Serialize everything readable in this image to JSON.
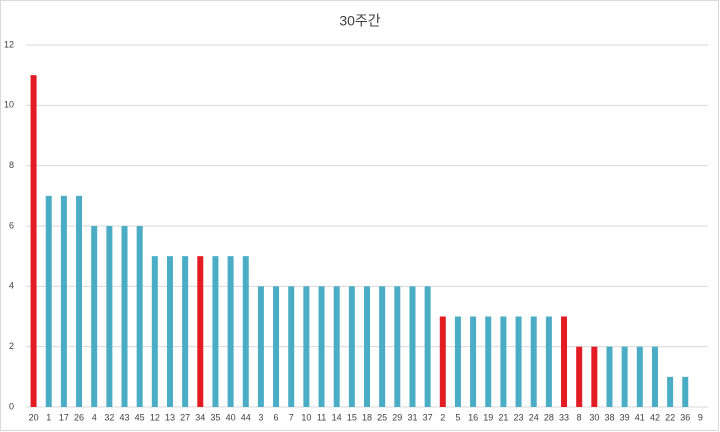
{
  "chart_data": {
    "type": "bar",
    "title": "30주간",
    "categories": [
      "20",
      "1",
      "17",
      "26",
      "4",
      "32",
      "43",
      "45",
      "12",
      "13",
      "27",
      "34",
      "35",
      "40",
      "44",
      "3",
      "6",
      "7",
      "10",
      "11",
      "14",
      "15",
      "18",
      "25",
      "29",
      "31",
      "37",
      "2",
      "5",
      "16",
      "19",
      "21",
      "23",
      "24",
      "28",
      "33",
      "8",
      "30",
      "38",
      "39",
      "41",
      "42",
      "22",
      "36",
      "9"
    ],
    "values": [
      11,
      7,
      7,
      7,
      6,
      6,
      6,
      6,
      5,
      5,
      5,
      5,
      5,
      5,
      5,
      4,
      4,
      4,
      4,
      4,
      4,
      4,
      4,
      4,
      4,
      4,
      4,
      3,
      3,
      3,
      3,
      3,
      3,
      3,
      3,
      3,
      2,
      2,
      2,
      2,
      2,
      2,
      1,
      1,
      0
    ],
    "colors": [
      "#e31b23",
      "#4bacc6",
      "#4bacc6",
      "#4bacc6",
      "#4bacc6",
      "#4bacc6",
      "#4bacc6",
      "#4bacc6",
      "#4bacc6",
      "#4bacc6",
      "#4bacc6",
      "#e31b23",
      "#4bacc6",
      "#4bacc6",
      "#4bacc6",
      "#4bacc6",
      "#4bacc6",
      "#4bacc6",
      "#4bacc6",
      "#4bacc6",
      "#4bacc6",
      "#4bacc6",
      "#4bacc6",
      "#4bacc6",
      "#4bacc6",
      "#4bacc6",
      "#4bacc6",
      "#e31b23",
      "#4bacc6",
      "#4bacc6",
      "#4bacc6",
      "#4bacc6",
      "#4bacc6",
      "#4bacc6",
      "#4bacc6",
      "#e31b23",
      "#e31b23",
      "#e31b23",
      "#4bacc6",
      "#4bacc6",
      "#4bacc6",
      "#4bacc6",
      "#4bacc6",
      "#4bacc6",
      "#4bacc6"
    ],
    "ylim": [
      0,
      12
    ],
    "yticks": [
      0,
      2,
      4,
      6,
      8,
      10,
      12
    ],
    "grid": true
  }
}
